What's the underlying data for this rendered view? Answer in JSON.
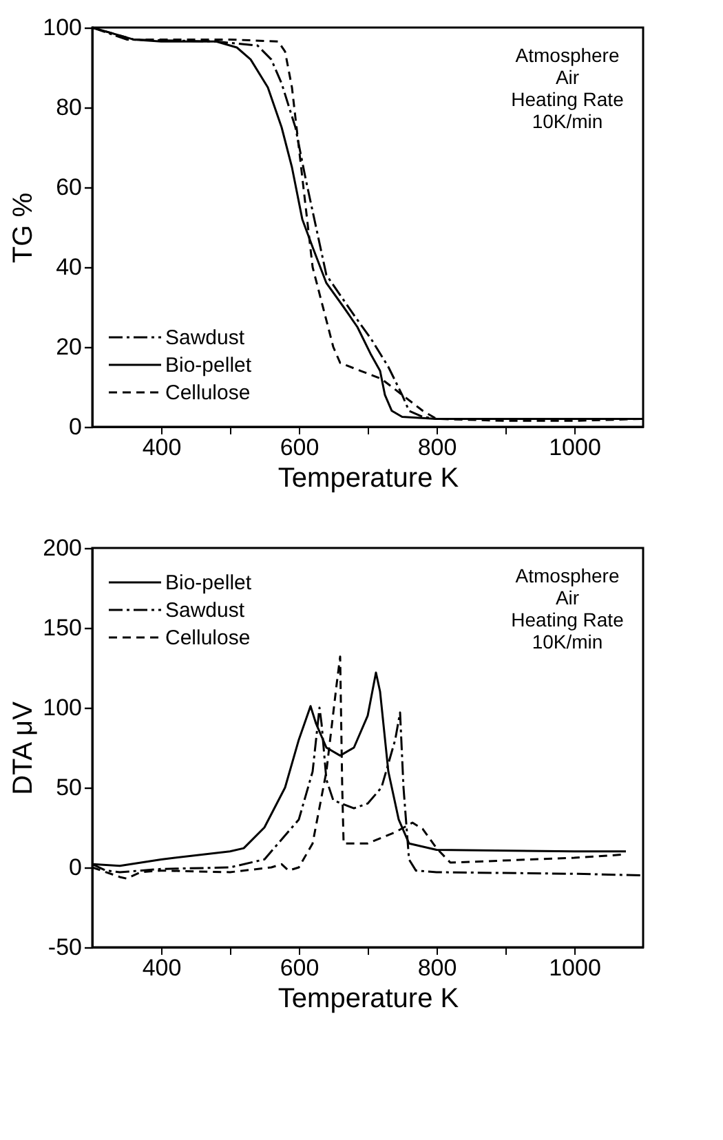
{
  "chart_data": [
    {
      "type": "line",
      "xlabel": "Temperature  K",
      "ylabel": "TG  %",
      "xlim": [
        300,
        1100
      ],
      "ylim": [
        0,
        100
      ],
      "xticks": [
        400,
        {
          "value": 500,
          "label": null
        },
        600,
        {
          "value": 700,
          "label": null
        },
        800,
        {
          "value": 900,
          "label": null
        },
        1000
      ],
      "yticks": [
        0,
        20,
        40,
        60,
        80,
        100
      ],
      "grid": false,
      "legend": "bottom left",
      "marker": "none",
      "annotations": [
        "Atmosphere",
        "Air",
        "Heating Rate",
        "10K/min"
      ],
      "series": [
        {
          "name": "Sawdust",
          "color": "#000000",
          "line_style": "dashdot",
          "x": [
            300,
            350,
            480,
            540,
            560,
            575,
            595,
            610,
            625,
            640,
            660,
            680,
            705,
            730,
            750,
            760,
            780,
            800,
            1100
          ],
          "values": [
            100,
            97,
            96.5,
            95.5,
            92,
            86,
            75,
            62,
            50,
            38,
            33,
            28,
            22,
            15,
            8,
            4,
            2.5,
            2,
            2
          ]
        },
        {
          "name": "Bio-pellet",
          "color": "#000000",
          "line_style": "solid",
          "x": [
            300,
            360,
            400,
            480,
            510,
            530,
            555,
            575,
            590,
            605,
            620,
            640,
            665,
            685,
            705,
            718,
            725,
            735,
            750,
            800,
            1100
          ],
          "values": [
            100,
            97,
            96.5,
            96.5,
            95,
            92,
            85,
            75,
            65,
            52,
            45,
            36,
            30,
            25,
            18,
            14,
            8,
            4,
            2.5,
            2,
            2
          ]
        },
        {
          "name": "Cellulose",
          "color": "#000000",
          "line_style": "dashed",
          "x": [
            300,
            360,
            500,
            570,
            580,
            590,
            600,
            610,
            620,
            635,
            650,
            660,
            690,
            720,
            750,
            780,
            800,
            900,
            1000,
            1100
          ],
          "values": [
            100,
            97,
            97,
            96.5,
            94,
            85,
            70,
            55,
            40,
            30,
            20,
            16,
            14,
            12,
            8,
            4,
            2,
            1.5,
            1.5,
            2
          ]
        }
      ]
    },
    {
      "type": "line",
      "xlabel": "Temperature  K",
      "ylabel": "DTA  μV",
      "xlim": [
        300,
        1100
      ],
      "ylim": [
        -50,
        200
      ],
      "xticks": [
        400,
        {
          "value": 500,
          "label": null
        },
        600,
        {
          "value": 700,
          "label": null
        },
        800,
        {
          "value": 900,
          "label": null
        },
        1000
      ],
      "yticks": [
        -50,
        0,
        50,
        100,
        150,
        200
      ],
      "grid": false,
      "legend": "top left",
      "marker": "none",
      "annotations": [
        "Atmosphere",
        "Air",
        "Heating Rate",
        "10K/min"
      ],
      "series": [
        {
          "name": "Bio-pellet",
          "color": "#000000",
          "line_style": "solid",
          "x": [
            300,
            340,
            400,
            500,
            520,
            550,
            580,
            600,
            617,
            625,
            640,
            660,
            680,
            700,
            712,
            718,
            730,
            745,
            760,
            800,
            1000,
            1075
          ],
          "values": [
            2,
            1,
            5,
            10,
            12,
            25,
            50,
            80,
            101,
            90,
            75,
            70,
            75,
            95,
            122,
            110,
            60,
            30,
            15,
            11,
            10,
            10
          ]
        },
        {
          "name": "Sawdust",
          "color": "#000000",
          "line_style": "dashdot",
          "x": [
            300,
            320,
            340,
            400,
            500,
            550,
            600,
            620,
            630,
            633,
            640,
            650,
            680,
            700,
            720,
            740,
            747,
            752,
            760,
            770,
            800,
            1000,
            1100
          ],
          "values": [
            2,
            -2,
            -3,
            -1,
            0,
            5,
            30,
            60,
            100,
            90,
            55,
            42,
            37,
            40,
            50,
            80,
            97,
            50,
            5,
            -2,
            -3,
            -4,
            -5
          ]
        },
        {
          "name": "Cellulose",
          "color": "#000000",
          "line_style": "dashed",
          "x": [
            300,
            340,
            350,
            370,
            400,
            500,
            560,
            575,
            585,
            600,
            620,
            640,
            655,
            660,
            663,
            665,
            700,
            740,
            765,
            780,
            800,
            820,
            1000,
            1070
          ],
          "values": [
            0,
            -6,
            -7,
            -3,
            -2,
            -3,
            0,
            2,
            -2,
            0,
            15,
            60,
            115,
            132,
            50,
            15,
            15,
            22,
            28,
            24,
            12,
            3,
            6,
            8
          ]
        }
      ]
    }
  ]
}
